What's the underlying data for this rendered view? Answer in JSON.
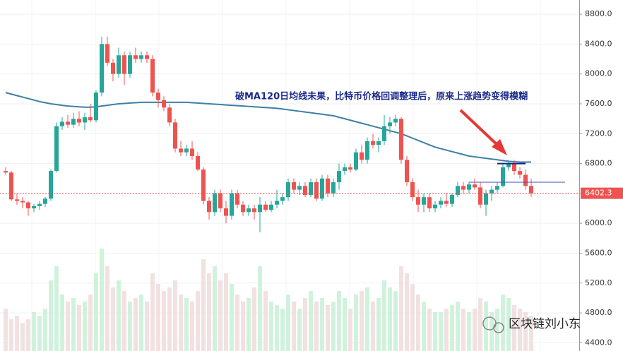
{
  "chart_data": {
    "type": "candlestick",
    "annotation": "破MA120日均线未果，比特币价格回调整理后，原来上涨趋势变得模糊",
    "watermark": "区块链刘小东",
    "up_color": "#26a69a",
    "down_color": "#ef5350",
    "ma_color": "#3d7fa6",
    "ylim": [
      4290,
      8990
    ],
    "yticks": [
      {
        "value": 4400,
        "label": "4400.0"
      },
      {
        "value": 4800,
        "label": "4800.0"
      },
      {
        "value": 5200,
        "label": "5200.0"
      },
      {
        "value": 5600,
        "label": "5600.0"
      },
      {
        "value": 6000,
        "label": "6000.0"
      },
      {
        "value": 6400,
        "label": "6400.0"
      },
      {
        "value": 6800,
        "label": "6800.0"
      },
      {
        "value": 7200,
        "label": "7200.0"
      },
      {
        "value": 7600,
        "label": "7600.0"
      },
      {
        "value": 8000,
        "label": "8000.0"
      },
      {
        "value": 8400,
        "label": "8400.0"
      },
      {
        "value": 8800,
        "label": "8800.0"
      }
    ],
    "grid": true,
    "candles": [
      [
        6700,
        6750,
        6650,
        6680
      ],
      [
        6680,
        6700,
        6300,
        6320
      ],
      [
        6320,
        6400,
        6250,
        6300
      ],
      [
        6300,
        6350,
        6200,
        6280
      ],
      [
        6280,
        6300,
        6100,
        6200
      ],
      [
        6200,
        6260,
        6150,
        6230
      ],
      [
        6230,
        6300,
        6180,
        6260
      ],
      [
        6260,
        6350,
        6220,
        6330
      ],
      [
        6330,
        6720,
        6300,
        6700
      ],
      [
        6700,
        7350,
        6680,
        7300
      ],
      [
        7300,
        7420,
        7250,
        7360
      ],
      [
        7360,
        7450,
        7280,
        7320
      ],
      [
        7320,
        7480,
        7280,
        7400
      ],
      [
        7400,
        7500,
        7300,
        7350
      ],
      [
        7350,
        7480,
        7250,
        7420
      ],
      [
        7420,
        7600,
        7350,
        7380
      ],
      [
        7380,
        7780,
        7350,
        7750
      ],
      [
        7750,
        8500,
        7700,
        8400
      ],
      [
        8400,
        8500,
        8100,
        8150
      ],
      [
        8150,
        8200,
        7900,
        8000
      ],
      [
        8000,
        8350,
        7950,
        8250
      ],
      [
        8250,
        8300,
        7850,
        8000
      ],
      [
        8000,
        8300,
        7950,
        8250
      ],
      [
        8250,
        8350,
        8150,
        8200
      ],
      [
        8200,
        8300,
        8150,
        8250
      ],
      [
        8250,
        8300,
        8150,
        8200
      ],
      [
        8200,
        8250,
        7700,
        7750
      ],
      [
        7750,
        7800,
        7550,
        7650
      ],
      [
        7650,
        7700,
        7500,
        7550
      ],
      [
        7550,
        7600,
        7300,
        7350
      ],
      [
        7350,
        7400,
        6950,
        7000
      ],
      [
        7000,
        7100,
        6900,
        6950
      ],
      [
        6950,
        7050,
        6900,
        7000
      ],
      [
        7000,
        7100,
        6850,
        6900
      ],
      [
        6900,
        6950,
        6700,
        6720
      ],
      [
        6720,
        6750,
        6250,
        6300
      ],
      [
        6300,
        6350,
        6050,
        6150
      ],
      [
        6150,
        6450,
        6100,
        6400
      ],
      [
        6400,
        6450,
        6150,
        6200
      ],
      [
        6200,
        6300,
        6000,
        6100
      ],
      [
        6100,
        6450,
        6050,
        6400
      ],
      [
        6400,
        6450,
        6200,
        6250
      ],
      [
        6250,
        6300,
        6100,
        6150
      ],
      [
        6150,
        6250,
        6100,
        6200
      ],
      [
        6200,
        6250,
        6050,
        6150
      ],
      [
        6150,
        6350,
        5880,
        6250
      ],
      [
        6250,
        6300,
        6150,
        6180
      ],
      [
        6180,
        6300,
        6150,
        6250
      ],
      [
        6250,
        6450,
        6200,
        6300
      ],
      [
        6300,
        6400,
        6250,
        6350
      ],
      [
        6350,
        6600,
        6300,
        6550
      ],
      [
        6550,
        6600,
        6400,
        6450
      ],
      [
        6450,
        6550,
        6380,
        6500
      ],
      [
        6500,
        6550,
        6350,
        6380
      ],
      [
        6380,
        6600,
        6350,
        6550
      ],
      [
        6550,
        6600,
        6300,
        6330
      ],
      [
        6330,
        6650,
        6300,
        6600
      ],
      [
        6600,
        6650,
        6350,
        6400
      ],
      [
        6400,
        6600,
        6350,
        6550
      ],
      [
        6550,
        6800,
        6450,
        6700
      ],
      [
        6700,
        6800,
        6650,
        6750
      ],
      [
        6750,
        6800,
        6680,
        6720
      ],
      [
        6720,
        7000,
        6700,
        6950
      ],
      [
        6950,
        7050,
        6800,
        6850
      ],
      [
        6850,
        7150,
        6800,
        7100
      ],
      [
        7100,
        7200,
        7000,
        7050
      ],
      [
        7050,
        7150,
        6950,
        7100
      ],
      [
        7100,
        7450,
        7050,
        7300
      ],
      [
        7300,
        7420,
        7200,
        7350
      ],
      [
        7350,
        7450,
        7300,
        7400
      ],
      [
        7400,
        7420,
        6800,
        6850
      ],
      [
        6850,
        6900,
        6500,
        6550
      ],
      [
        6550,
        6600,
        6300,
        6350
      ],
      [
        6350,
        6450,
        6150,
        6250
      ],
      [
        6250,
        6400,
        6150,
        6350
      ],
      [
        6350,
        6400,
        6150,
        6200
      ],
      [
        6200,
        6300,
        6150,
        6250
      ],
      [
        6250,
        6350,
        6200,
        6300
      ],
      [
        6300,
        6400,
        6220,
        6260
      ],
      [
        6260,
        6400,
        6220,
        6380
      ],
      [
        6380,
        6550,
        6350,
        6500
      ],
      [
        6500,
        6550,
        6400,
        6450
      ],
      [
        6450,
        6550,
        6400,
        6520
      ],
      [
        6520,
        6600,
        6450,
        6480
      ],
      [
        6480,
        6550,
        6200,
        6250
      ],
      [
        6250,
        6450,
        6100,
        6400
      ],
      [
        6400,
        6500,
        6300,
        6450
      ],
      [
        6450,
        6550,
        6400,
        6500
      ],
      [
        6500,
        6800,
        6480,
        6750
      ],
      [
        6750,
        6850,
        6700,
        6800
      ],
      [
        6800,
        6850,
        6650,
        6700
      ],
      [
        6700,
        6750,
        6600,
        6650
      ],
      [
        6650,
        6720,
        6450,
        6500
      ],
      [
        6500,
        6600,
        6350,
        6402.3
      ]
    ],
    "ma120": [
      7750,
      7730,
      7710,
      7690,
      7670,
      7650,
      7630,
      7615,
      7600,
      7590,
      7580,
      7570,
      7565,
      7560,
      7555,
      7555,
      7560,
      7570,
      7580,
      7590,
      7600,
      7605,
      7610,
      7615,
      7620,
      7620,
      7620,
      7620,
      7620,
      7620,
      7620,
      7620,
      7620,
      7615,
      7610,
      7605,
      7600,
      7595,
      7590,
      7585,
      7580,
      7575,
      7570,
      7565,
      7560,
      7555,
      7550,
      7545,
      7540,
      7530,
      7520,
      7510,
      7500,
      7490,
      7480,
      7470,
      7460,
      7450,
      7440,
      7420,
      7400,
      7380,
      7360,
      7340,
      7320,
      7300,
      7280,
      7260,
      7240,
      7220,
      7200,
      7170,
      7140,
      7110,
      7080,
      7050,
      7020,
      7000,
      6980,
      6960,
      6940,
      6920,
      6900,
      6890,
      6880,
      6870,
      6860,
      6850,
      6840,
      6830,
      6825,
      6820,
      6820,
      6820
    ],
    "volume": [
      60,
      45,
      50,
      40,
      45,
      55,
      50,
      60,
      100,
      120,
      80,
      70,
      75,
      65,
      70,
      80,
      110,
      145,
      120,
      90,
      100,
      85,
      70,
      75,
      80,
      70,
      110,
      95,
      85,
      90,
      100,
      80,
      75,
      70,
      85,
      130,
      110,
      120,
      100,
      110,
      95,
      80,
      70,
      75,
      90,
      120,
      85,
      70,
      65,
      60,
      80,
      70,
      60,
      75,
      85,
      70,
      75,
      65,
      70,
      85,
      75,
      60,
      80,
      85,
      90,
      70,
      75,
      100,
      90,
      85,
      120,
      110,
      95,
      80,
      70,
      60,
      55,
      55,
      60,
      65,
      70,
      60,
      55,
      60,
      75,
      70,
      55,
      60,
      80,
      75,
      65,
      60,
      55,
      50
    ],
    "levels": [
      {
        "value": 6800,
        "start": 87,
        "end": 92,
        "color": "#1a237e"
      },
      {
        "value": 6550,
        "start": 82,
        "end": 99,
        "color": "#3f51b5"
      }
    ]
  }
}
